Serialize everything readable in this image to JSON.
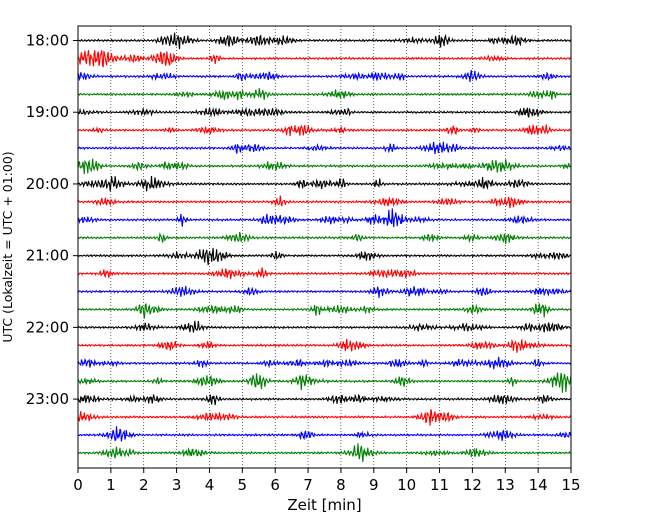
{
  "chart_data": {
    "type": "line",
    "title": "",
    "xlabel": "Zeit  [min]",
    "ylabel": "UTC (Lokalzeit = UTC + 01:00)",
    "x_ticks": [
      "0",
      "1",
      "2",
      "3",
      "4",
      "5",
      "6",
      "7",
      "8",
      "9",
      "10",
      "11",
      "12",
      "13",
      "14",
      "15"
    ],
    "xlim": [
      0,
      15
    ],
    "y_ticks": [
      "18:00",
      "19:00",
      "20:00",
      "21:00",
      "22:00",
      "23:00"
    ],
    "trace_interval_minutes": 15,
    "first_trace": "18:00",
    "last_trace": "23:45",
    "traces": 24,
    "trace_colors": [
      "#000000",
      "#ff0000",
      "#0000ff",
      "#008000"
    ],
    "grid": "vertical dotted lines at each minute",
    "series_note": "seismogram traces, one per 15-minute window, amplitude not calibrated"
  }
}
